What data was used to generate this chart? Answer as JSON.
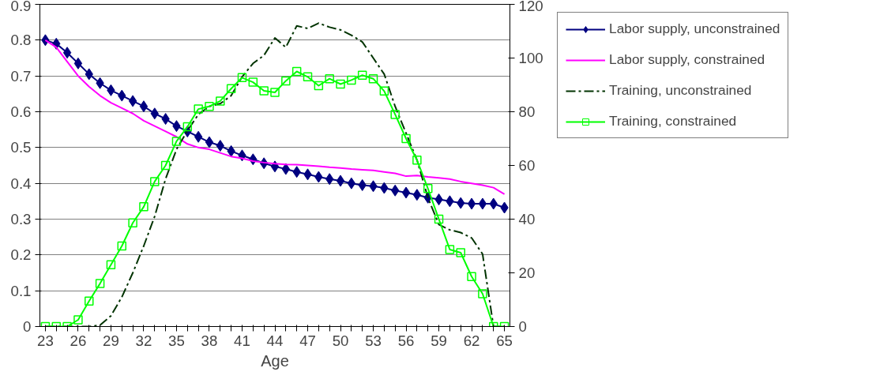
{
  "chart_data": {
    "type": "line",
    "xlabel": "Age",
    "categories": [
      "23",
      null,
      null,
      "26",
      null,
      null,
      "29",
      null,
      null,
      "32",
      null,
      null,
      "35",
      null,
      null,
      "38",
      null,
      null,
      "41",
      null,
      null,
      "44",
      null,
      null,
      "47",
      null,
      null,
      "50",
      null,
      null,
      "53",
      null,
      null,
      "56",
      null,
      null,
      "59",
      null,
      null,
      "62",
      null,
      null,
      "65"
    ],
    "ylim": [
      0,
      0.9
    ],
    "yticks": [
      0,
      0.1,
      0.2,
      0.3,
      0.4,
      0.5,
      0.6,
      0.7,
      0.8,
      0.9
    ],
    "y2lim": [
      0,
      120
    ],
    "y2ticks": [
      0,
      20,
      40,
      60,
      80,
      100,
      120
    ],
    "grid": "y",
    "legend": "right",
    "series": [
      {
        "name": "Labor supply, unconstrained",
        "color": "#000080",
        "marker": "diamond",
        "line_style": "solid",
        "values": [
          0.8,
          0.79,
          0.765,
          0.735,
          0.705,
          0.68,
          0.66,
          0.645,
          0.63,
          0.615,
          0.595,
          0.58,
          0.56,
          0.545,
          0.53,
          0.515,
          0.505,
          0.49,
          0.478,
          0.467,
          0.456,
          0.447,
          0.44,
          0.432,
          0.425,
          0.418,
          0.412,
          0.407,
          0.4,
          0.395,
          0.392,
          0.387,
          0.38,
          0.374,
          0.368,
          0.36,
          0.355,
          0.35,
          0.345,
          0.343,
          0.343,
          0.343,
          0.332
        ]
      },
      {
        "name": "Labor supply, constrained",
        "color": "#ff00ff",
        "marker": "none",
        "line_style": "solid",
        "values": [
          0.8,
          0.78,
          0.74,
          0.7,
          0.67,
          0.645,
          0.625,
          0.61,
          0.595,
          0.575,
          0.56,
          0.545,
          0.53,
          0.51,
          0.5,
          0.495,
          0.485,
          0.475,
          0.47,
          0.462,
          0.458,
          0.455,
          0.453,
          0.452,
          0.45,
          0.448,
          0.445,
          0.443,
          0.44,
          0.438,
          0.436,
          0.432,
          0.428,
          0.42,
          0.422,
          0.418,
          0.415,
          0.412,
          0.405,
          0.4,
          0.395,
          0.388,
          0.37
        ]
      },
      {
        "name": "Training, unconstrained",
        "color": "#003300",
        "marker": "none",
        "line_style": "dashdot",
        "axis": "y2",
        "values": [
          0,
          0,
          0,
          0,
          0,
          0.5,
          4,
          11,
          20,
          30,
          41,
          55,
          66,
          73,
          79,
          82,
          83,
          86,
          93,
          98,
          101,
          107.5,
          104,
          112,
          111,
          113,
          111.5,
          110.5,
          108.5,
          106,
          100,
          94,
          82,
          72,
          62,
          48,
          38,
          36,
          35,
          33,
          27,
          0,
          0
        ]
      },
      {
        "name": "Training, constrained",
        "color": "#00ff00",
        "marker": "square",
        "line_style": "solid",
        "axis": "y2",
        "values": [
          0,
          0,
          0,
          2.5,
          9.5,
          16,
          23,
          30,
          38.6,
          44.6,
          54,
          60,
          69,
          74.4,
          81,
          82,
          84,
          88.6,
          92.7,
          91,
          87.8,
          87.2,
          91.5,
          95,
          93,
          89.7,
          92.3,
          90.3,
          91.8,
          93.6,
          92.3,
          87.7,
          79,
          70,
          62,
          51.4,
          40,
          28.7,
          27.5,
          18.6,
          12.2,
          0,
          0
        ]
      }
    ]
  }
}
